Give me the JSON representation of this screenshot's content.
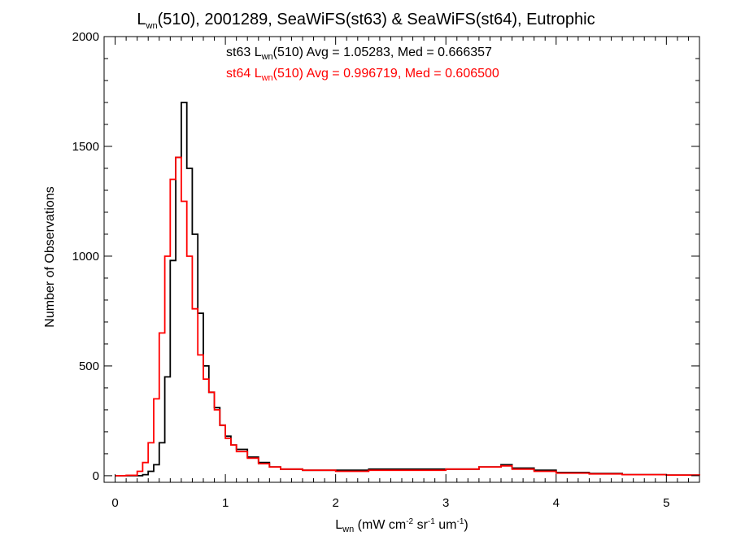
{
  "chart_data": {
    "type": "line",
    "title": {
      "pre": "L",
      "sub": "wn",
      "post": "(510), 2001289, SeaWiFS(st63) & SeaWiFS(st64), Eutrophic"
    },
    "xlabel": {
      "a": "L",
      "a_sub": "wn",
      "b": " (mW cm",
      "b_sup": "-2",
      "c": " sr",
      "c_sup": "-1",
      "d": " um",
      "d_sup": "-1",
      "e": ")"
    },
    "ylabel": "Number of Observations",
    "xlim": [
      -0.1,
      5.3
    ],
    "ylim": [
      -30,
      2000
    ],
    "xticks": [
      {
        "value": 0,
        "label": "0"
      },
      {
        "value": 1,
        "label": "1"
      },
      {
        "value": 2,
        "label": "2"
      },
      {
        "value": 3,
        "label": "3"
      },
      {
        "value": 4,
        "label": "4"
      },
      {
        "value": 5,
        "label": "5"
      }
    ],
    "yticks": [
      {
        "value": 0,
        "label": "0"
      },
      {
        "value": 500,
        "label": "500"
      },
      {
        "value": 1000,
        "label": "1000"
      },
      {
        "value": 1500,
        "label": "1500"
      },
      {
        "value": 2000,
        "label": "2000"
      }
    ],
    "grid": false,
    "legend_position": "top-center",
    "series": [
      {
        "name": "st63",
        "color": "#000000",
        "legend": {
          "pre": "st63 L",
          "sub": "wn",
          "post": "(510) Avg = 1.05283, Med = 0.666357"
        },
        "x": [
          0.0,
          0.1,
          0.2,
          0.25,
          0.3,
          0.35,
          0.4,
          0.45,
          0.5,
          0.55,
          0.6,
          0.65,
          0.7,
          0.75,
          0.8,
          0.85,
          0.9,
          0.95,
          1.0,
          1.05,
          1.1,
          1.2,
          1.3,
          1.4,
          1.5,
          1.7,
          2.0,
          2.3,
          2.6,
          3.0,
          3.3,
          3.5,
          3.6,
          3.8,
          4.0,
          4.3,
          4.6,
          5.0,
          5.3
        ],
        "y": [
          0,
          0,
          0,
          5,
          20,
          50,
          150,
          450,
          980,
          1450,
          1700,
          1400,
          1100,
          740,
          500,
          380,
          310,
          230,
          180,
          140,
          120,
          85,
          60,
          40,
          30,
          25,
          25,
          30,
          30,
          30,
          40,
          50,
          35,
          25,
          15,
          10,
          5,
          3,
          2
        ]
      },
      {
        "name": "st64",
        "color": "#ff0000",
        "legend": {
          "pre": "st64 L",
          "sub": "wn",
          "post": "(510) Avg = 0.996719, Med = 0.606500"
        },
        "x": [
          0.0,
          0.1,
          0.2,
          0.25,
          0.3,
          0.35,
          0.4,
          0.45,
          0.5,
          0.55,
          0.6,
          0.65,
          0.7,
          0.75,
          0.8,
          0.85,
          0.9,
          0.95,
          1.0,
          1.05,
          1.1,
          1.2,
          1.3,
          1.4,
          1.5,
          1.7,
          2.0,
          2.3,
          2.6,
          3.0,
          3.3,
          3.5,
          3.6,
          3.8,
          4.0,
          4.3,
          4.6,
          5.0,
          5.3
        ],
        "y": [
          0,
          2,
          20,
          60,
          150,
          350,
          650,
          1000,
          1350,
          1450,
          1250,
          1000,
          760,
          550,
          440,
          380,
          300,
          230,
          170,
          140,
          110,
          80,
          55,
          40,
          30,
          25,
          20,
          25,
          25,
          30,
          40,
          45,
          30,
          20,
          12,
          8,
          5,
          3,
          2
        ]
      }
    ]
  }
}
